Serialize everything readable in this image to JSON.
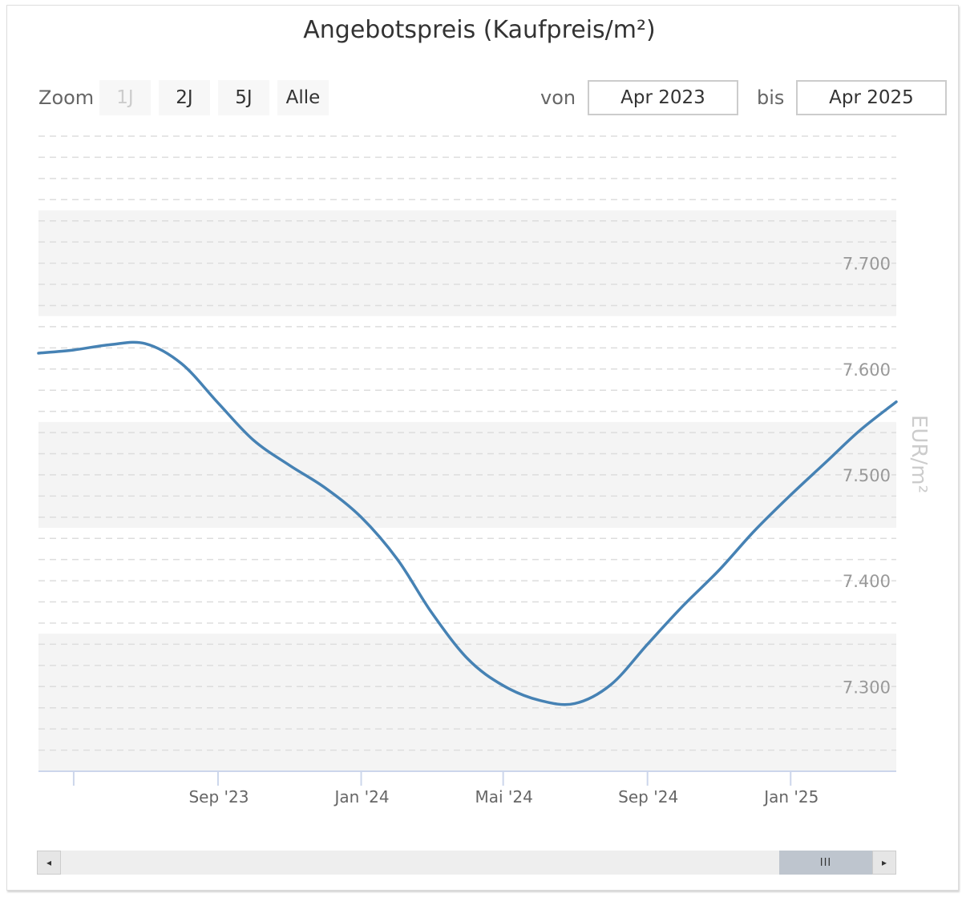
{
  "chart_data": {
    "type": "line",
    "title": "Angebotspreis (Kaufpreis/m²)",
    "ylabel": "EUR/m²",
    "xlabel": "",
    "ylim": [
      7220,
      7820
    ],
    "yticks": [
      7300,
      7400,
      7500,
      7600,
      7700
    ],
    "ytick_labels": [
      "7.300",
      "7.400",
      "7.500",
      "7.600",
      "7.700"
    ],
    "xticks": [
      "2023-05-01",
      "2023-09-01",
      "2024-01-01",
      "2024-05-01",
      "2024-09-01",
      "2025-01-01"
    ],
    "xtick_labels": [
      "",
      "Sep '23",
      "Jan '24",
      "Mai '24",
      "Sep '24",
      "Jan '25"
    ],
    "xlim": [
      "2023-04-01",
      "2025-04-01"
    ],
    "grid": true,
    "series": [
      {
        "color": "#4682b4",
        "x": [
          "2023-04-01",
          "2023-05-01",
          "2023-06-01",
          "2023-07-01",
          "2023-08-01",
          "2023-09-01",
          "2023-10-01",
          "2023-11-01",
          "2023-12-01",
          "2024-01-01",
          "2024-02-01",
          "2024-03-01",
          "2024-04-01",
          "2024-05-01",
          "2024-06-01",
          "2024-07-01",
          "2024-08-01",
          "2024-09-01",
          "2024-10-01",
          "2024-11-01",
          "2024-12-01",
          "2025-01-01",
          "2025-02-01",
          "2025-03-01",
          "2025-04-01"
        ],
        "values": [
          7615,
          7618,
          7623,
          7624,
          7605,
          7568,
          7533,
          7509,
          7488,
          7460,
          7420,
          7370,
          7326,
          7301,
          7287,
          7284,
          7302,
          7340,
          7376,
          7410,
          7447,
          7481,
          7513,
          7542,
          7569
        ]
      }
    ]
  },
  "controls": {
    "zoom_label": "Zoom",
    "zoom_buttons": [
      "1J",
      "2J",
      "5J",
      "Alle"
    ],
    "from_label": "von",
    "from_value": "Apr 2023",
    "to_label": "bis",
    "to_value": "Apr 2025"
  },
  "scrollbar": {
    "left_arrow": "◂",
    "right_arrow": "▸",
    "grip": "III"
  },
  "colors": {
    "line": "#4682b4",
    "band": "#f4f4f4",
    "axis": "#ccd6eb"
  }
}
